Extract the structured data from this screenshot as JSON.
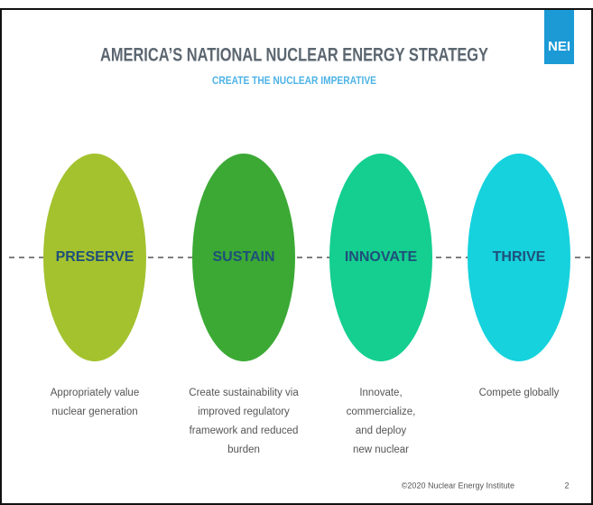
{
  "header": {
    "title": "AMERICA’S NATIONAL NUCLEAR ENERGY STRATEGY",
    "subtitle": "CREATE THE NUCLEAR IMPERATIVE",
    "logo": "NEI"
  },
  "pillars": [
    {
      "label": "PRESERVE",
      "color": "#a3c22e",
      "description": [
        "Appropriately value",
        "nuclear generation"
      ]
    },
    {
      "label": "SUSTAIN",
      "color": "#3ba934",
      "description": [
        "Create sustainability via",
        "improved regulatory",
        "framework and reduced",
        "burden"
      ]
    },
    {
      "label": "INNOVATE",
      "color": "#14cf8f",
      "description": [
        "Innovate,",
        "commercialize,",
        "and deploy",
        "new nuclear"
      ]
    },
    {
      "label": "THRIVE",
      "color": "#15d2dd",
      "description": [
        "Compete globally"
      ]
    }
  ],
  "footer": {
    "copyright": "©2020 Nuclear Energy Institute",
    "page": "2"
  }
}
